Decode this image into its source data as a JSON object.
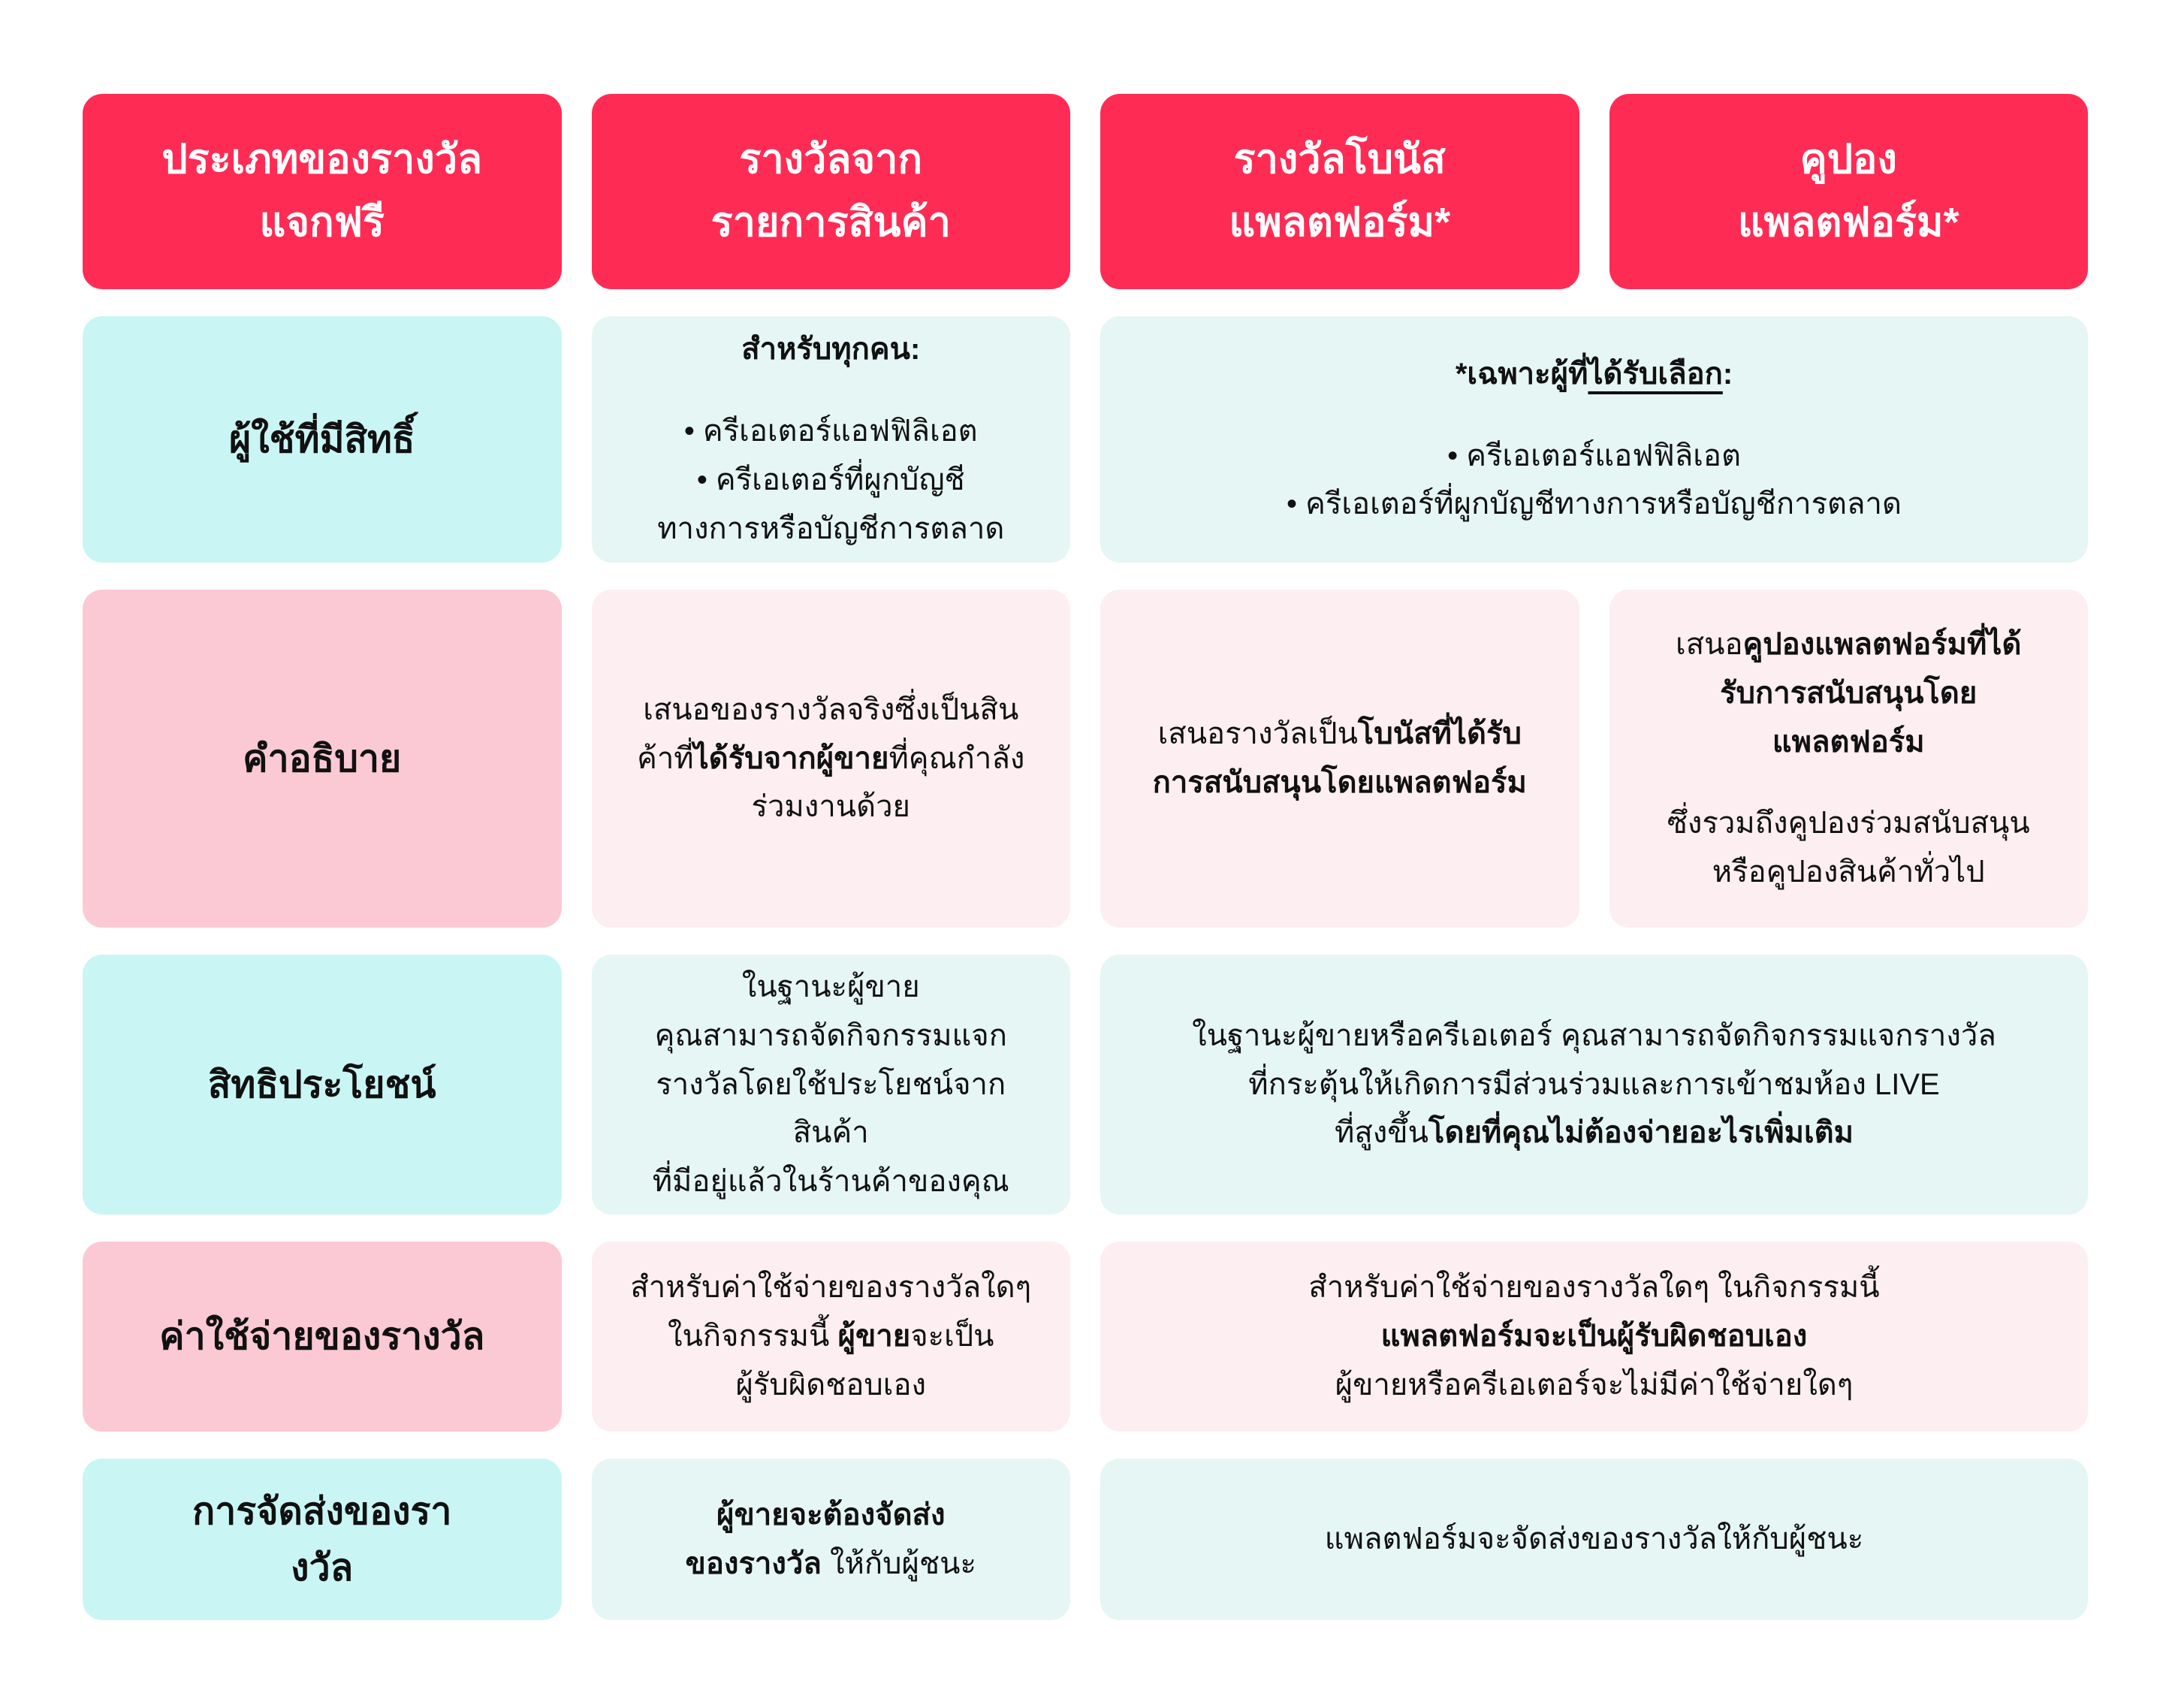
{
  "colors": {
    "header_bg": "#FE2C55",
    "header_text": "#FFFFFF",
    "label_cyan_bg": "#C9F6F4",
    "label_pink_bg": "#FBC9D3",
    "cell_cyan_bg": "#E5F6F4",
    "cell_pink_bg": "#FCEEF1",
    "text": "#111111"
  },
  "chart_data": {
    "type": "table",
    "title": "ประเภทของรางวัลแจกฟรี",
    "columns": [
      "ประเภทของรางวัลแจกฟรี",
      "รางวัลจากรายการสินค้า",
      "รางวัลโบนัสแพลตฟอร์ม*",
      "คูปองแพลตฟอร์ม*"
    ],
    "rows": [
      {
        "label": "ผู้ใช้ที่มีสิทธิ์",
        "product_rewards": "สำหรับทุกคน: • ครีเอเตอร์แอฟฟิลิเอต • ครีเอเตอร์ที่ผูกบัญชีทางการหรือบัญชีการตลาด",
        "platform_bonus_and_coupon": "*เฉพาะผู้ที่ได้รับเลือก: • ครีเอเตอร์แอฟฟิลิเอต • ครีเอเตอร์ที่ผูกบัญชีทางการหรือบัญชีการตลาด"
      },
      {
        "label": "คำอธิบาย",
        "product_rewards": "เสนอของรางวัลจริงซึ่งเป็นสินค้าที่ได้รับจากผู้ขายที่คุณกำลังร่วมงานด้วย",
        "platform_bonus": "เสนอรางวัลเป็นโบนัสที่ได้รับการสนับสนุนโดยแพลตฟอร์ม",
        "platform_coupon": "เสนอคูปองแพลตฟอร์มที่ได้รับการสนับสนุนโดยแพลตฟอร์ม ซึ่งรวมถึงคูปองร่วมสนับสนุนหรือคูปองสินค้าทั่วไป"
      },
      {
        "label": "สิทธิประโยชน์",
        "product_rewards": "ในฐานะผู้ขาย คุณสามารถจัดกิจกรรมแจกรางวัลโดยใช้ประโยชน์จากสินค้าที่มีอยู่แล้วในร้านค้าของคุณ",
        "platform_bonus_and_coupon": "ในฐานะผู้ขายหรือครีเอเตอร์ คุณสามารถจัดกิจกรรมแจกรางวัลที่กระตุ้นให้เกิดการมีส่วนร่วมและการเข้าชมห้อง LIVE ที่สูงขึ้นโดยที่คุณไม่ต้องจ่ายอะไรเพิ่มเติม"
      },
      {
        "label": "ค่าใช้จ่ายของรางวัล",
        "product_rewards": "สำหรับค่าใช้จ่ายของรางวัลใดๆ ในกิจกรรมนี้ ผู้ขายจะเป็นผู้รับผิดชอบเอง",
        "platform_bonus_and_coupon": "สำหรับค่าใช้จ่ายของรางวัลใดๆ ในกิจกรรมนี้ แพลตฟอร์มจะเป็นผู้รับผิดชอบเอง ผู้ขายหรือครีเอเตอร์จะไม่มีค่าใช้จ่ายใดๆ"
      },
      {
        "label": "การจัดส่งของรางวัล",
        "product_rewards": "ผู้ขายจะต้องจัดส่งของรางวัล ให้กับผู้ชนะ",
        "platform_bonus_and_coupon": "แพลตฟอร์มจะจัดส่งของรางวัลให้กับผู้ชนะ"
      }
    ]
  },
  "table": {
    "headers": [
      {
        "lines": [
          "ประเภทของรางวัล",
          "แจกฟรี"
        ]
      },
      {
        "lines": [
          "รางวัลจาก",
          "รายการสินค้า"
        ]
      },
      {
        "lines": [
          "รางวัลโบนัส",
          "แพลตฟอร์ม*"
        ]
      },
      {
        "lines": [
          "คูปอง",
          "แพลตฟอร์ม*"
        ]
      }
    ],
    "rows": [
      {
        "name": "eligible-users",
        "label": {
          "tone": "cyan",
          "lines": [
            "ผู้ใช้ที่มีสิทธิ์"
          ]
        },
        "cells": [
          {
            "span": 1,
            "tone": "cyan",
            "blocks": [
              [
                [
                  {
                    "t": "สำหรับทุกคน:",
                    "b": true
                  }
                ]
              ],
              [
                [
                  {
                    "t": "•  ครีเอเตอร์แอฟฟิลิเอต"
                  }
                ],
                [
                  {
                    "t": "•  ครีเอเตอร์ที่ผูกบัญชี"
                  }
                ],
                [
                  {
                    "t": "ทางการหรือบัญชีการตลาด"
                  }
                ]
              ]
            ]
          },
          {
            "span": 2,
            "tone": "cyan",
            "blocks": [
              [
                [
                  {
                    "t": "*เฉพาะผู้ที่",
                    "b": true
                  },
                  {
                    "t": "ได้รับเลือก",
                    "b": true,
                    "u": true
                  },
                  {
                    "t": ":",
                    "b": true
                  }
                ]
              ],
              [
                [
                  {
                    "t": "•  ครีเอเตอร์แอฟฟิลิเอต"
                  }
                ],
                [
                  {
                    "t": "•  ครีเอเตอร์ที่ผูกบัญชีทางการหรือบัญชีการตลาด"
                  }
                ]
              ]
            ]
          }
        ]
      },
      {
        "name": "description",
        "label": {
          "tone": "pink",
          "lines": [
            "คำอธิบาย"
          ]
        },
        "cells": [
          {
            "span": 1,
            "tone": "pink",
            "blocks": [
              [
                [
                  {
                    "t": "เสนอของรางวัลจริงซึ่งเป็นสิน"
                  }
                ],
                [
                  {
                    "t": "ค้าที่"
                  },
                  {
                    "t": "ได้รับจากผู้ขาย",
                    "b": true
                  },
                  {
                    "t": "ที่คุณกำลัง"
                  }
                ],
                [
                  {
                    "t": "ร่วมงานด้วย"
                  }
                ]
              ]
            ]
          },
          {
            "span": 1,
            "tone": "pink",
            "blocks": [
              [
                [
                  {
                    "t": "เสนอรางวัลเป็น"
                  },
                  {
                    "t": "โบนัสที่ได้รับ",
                    "b": true
                  }
                ],
                [
                  {
                    "t": "การสนับสนุนโดยแพลตฟอร์ม",
                    "b": true
                  }
                ]
              ]
            ]
          },
          {
            "span": 1,
            "tone": "pink",
            "blocks": [
              [
                [
                  {
                    "t": "เสนอ"
                  },
                  {
                    "t": "คูปองแพลตฟอร์มที่ได้",
                    "b": true
                  }
                ],
                [
                  {
                    "t": "รับการสนับสนุนโดย",
                    "b": true
                  }
                ],
                [
                  {
                    "t": "แพลตฟอร์ม",
                    "b": true
                  }
                ]
              ],
              [
                [
                  {
                    "t": "ซึ่งรวมถึงคูปองร่วมสนับสนุน"
                  }
                ],
                [
                  {
                    "t": "หรือคูปองสินค้าทั่วไป"
                  }
                ]
              ]
            ]
          }
        ]
      },
      {
        "name": "benefits",
        "label": {
          "tone": "cyan",
          "lines": [
            "สิทธิประโยชน์"
          ]
        },
        "cells": [
          {
            "span": 1,
            "tone": "cyan",
            "blocks": [
              [
                [
                  {
                    "t": "ในฐานะผู้ขาย"
                  }
                ],
                [
                  {
                    "t": "คุณสามารถจัดกิจกรรมแจก"
                  }
                ],
                [
                  {
                    "t": "รางวัลโดยใช้ประโยชน์จากสินค้า"
                  }
                ],
                [
                  {
                    "t": "ที่มีอยู่แล้วในร้านค้าของคุณ"
                  }
                ]
              ]
            ]
          },
          {
            "span": 2,
            "tone": "cyan",
            "blocks": [
              [
                [
                  {
                    "t": "ในฐานะผู้ขายหรือครีเอเตอร์ คุณสามารถจัดกิจกรรมแจกรางวัล"
                  }
                ],
                [
                  {
                    "t": "ที่กระตุ้นให้เกิดการมีส่วนร่วมและการเข้าชมห้อง LIVE"
                  }
                ],
                [
                  {
                    "t": "ที่สูงขึ้น"
                  },
                  {
                    "t": "โดยที่คุณไม่ต้องจ่ายอะไรเพิ่มเติม",
                    "b": true
                  }
                ]
              ]
            ]
          }
        ]
      },
      {
        "name": "reward-cost",
        "label": {
          "tone": "pink",
          "lines": [
            "ค่าใช้จ่ายของรางวัล"
          ]
        },
        "cells": [
          {
            "span": 1,
            "tone": "pink",
            "blocks": [
              [
                [
                  {
                    "t": "สำหรับค่าใช้จ่ายของรางวัลใดๆ"
                  }
                ],
                [
                  {
                    "t": "ในกิจกรรมนี้ "
                  },
                  {
                    "t": "ผู้ขาย",
                    "b": true
                  },
                  {
                    "t": "จะเป็น"
                  }
                ],
                [
                  {
                    "t": "ผู้รับผิดชอบเอง"
                  }
                ]
              ]
            ]
          },
          {
            "span": 2,
            "tone": "pink",
            "blocks": [
              [
                [
                  {
                    "t": "สำหรับค่าใช้จ่ายของรางวัลใดๆ ในกิจกรรมนี้"
                  }
                ],
                [
                  {
                    "t": "แพลตฟอร์มจะเป็นผู้รับผิดชอบเอง",
                    "b": true
                  }
                ],
                [
                  {
                    "t": "ผู้ขายหรือครีเอเตอร์จะไม่มีค่าใช้จ่ายใดๆ"
                  }
                ]
              ]
            ]
          }
        ]
      },
      {
        "name": "reward-delivery",
        "label": {
          "tone": "cyan",
          "lines": [
            "การจัดส่งของรา",
            "งวัล"
          ]
        },
        "cells": [
          {
            "span": 1,
            "tone": "cyan",
            "blocks": [
              [
                [
                  {
                    "t": "ผู้ขายจะต้องจัดส่ง",
                    "b": true
                  }
                ],
                [
                  {
                    "t": "ของรางวัล",
                    "b": true
                  },
                  {
                    "t": " ให้กับผู้ชนะ"
                  }
                ]
              ]
            ]
          },
          {
            "span": 2,
            "tone": "cyan",
            "blocks": [
              [
                [
                  {
                    "t": "แพลตฟอร์มจะจัดส่งของรางวัลให้กับผู้ชนะ"
                  }
                ]
              ]
            ]
          }
        ]
      }
    ]
  }
}
